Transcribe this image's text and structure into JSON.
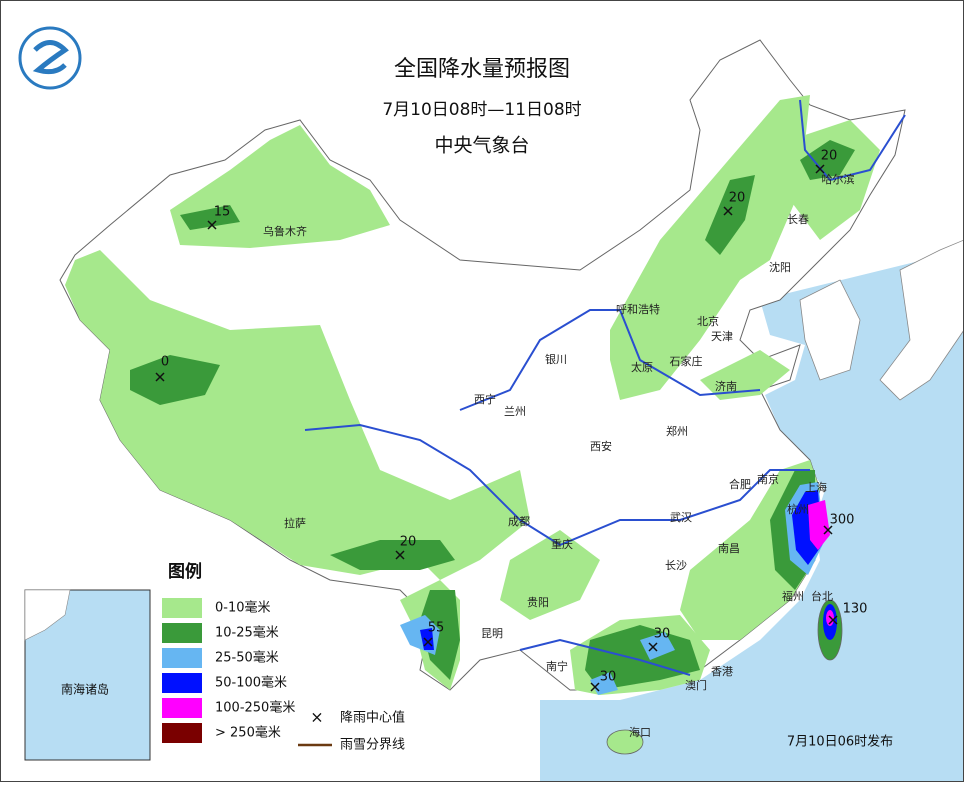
{
  "header": {
    "title": "全国降水量预报图",
    "period": "7月10日08时—11日08时",
    "issuer": "中央气象台"
  },
  "cities": [
    "乌鲁木齐",
    "西宁",
    "兰州",
    "银川",
    "呼和浩特",
    "北京",
    "天津",
    "太原",
    "石家庄",
    "济南",
    "郑州",
    "西安",
    "成都",
    "拉萨",
    "重庆",
    "贵阳",
    "昆明",
    "南宁",
    "长沙",
    "武汉",
    "合肥",
    "南京",
    "上海",
    "杭州",
    "南昌",
    "福州",
    "台北",
    "香港",
    "澳门",
    "海口",
    "沈阳",
    "长春",
    "哈尔滨"
  ],
  "rain_centers": [
    15,
    0,
    20,
    20,
    20,
    55,
    30,
    30,
    300,
    130
  ],
  "legend": {
    "title": "图例",
    "items": [
      {
        "label": "0-10毫米",
        "color": "#a6e88c"
      },
      {
        "label": "10-25毫米",
        "color": "#3a9a3a"
      },
      {
        "label": "25-50毫米",
        "color": "#66b6f2"
      },
      {
        "label": "50-100毫米",
        "color": "#0010ff"
      },
      {
        "label": "100-250毫米",
        "color": "#ff00ff"
      },
      {
        "label": "> 250毫米",
        "color": "#7a0000"
      }
    ],
    "center_marker": "降雨中心值",
    "boundary": "雨雪分界线"
  },
  "inset": {
    "label": "南海诸岛"
  },
  "footer": {
    "issued": "7月10日06时发布"
  }
}
